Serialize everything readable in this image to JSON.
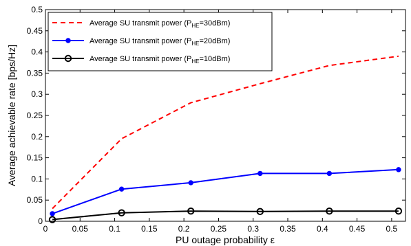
{
  "chart_data": {
    "type": "line",
    "xlabel": "PU outage probability ε",
    "ylabel": "Average achievable rate [bps/Hz]",
    "xlim": [
      0,
      0.52
    ],
    "ylim": [
      0,
      0.5
    ],
    "xticks": [
      "0",
      "0.05",
      "0.1",
      "0.15",
      "0.2",
      "0.25",
      "0.3",
      "0.35",
      "0.4",
      "0.45",
      "0.5"
    ],
    "yticks": [
      "0",
      "0.05",
      "0.1",
      "0.15",
      "0.2",
      "0.25",
      "0.3",
      "0.35",
      "0.4",
      "0.45",
      "0.5"
    ],
    "grid": false,
    "legend_position": "top-left",
    "series": [
      {
        "name": "Average SU transmit power (P",
        "name_sub": "HE",
        "name_suffix": "=30dBm)",
        "color": "#ff0000",
        "style": "dashed",
        "marker": "none",
        "x": [
          0.01,
          0.11,
          0.21,
          0.31,
          0.41,
          0.51
        ],
        "y": [
          0.03,
          0.195,
          0.28,
          0.325,
          0.368,
          0.39
        ]
      },
      {
        "name": "Average SU transmit power (P",
        "name_sub": "HE",
        "name_suffix": "=20dBm)",
        "color": "#0000ff",
        "style": "solid",
        "marker": "dot",
        "x": [
          0.01,
          0.11,
          0.21,
          0.31,
          0.41,
          0.51
        ],
        "y": [
          0.018,
          0.076,
          0.091,
          0.113,
          0.113,
          0.122
        ]
      },
      {
        "name": "Average SU transmit power (P",
        "name_sub": "HE",
        "name_suffix": "=10dBm)",
        "color": "#000000",
        "style": "solid",
        "marker": "circle",
        "x": [
          0.01,
          0.11,
          0.21,
          0.31,
          0.41,
          0.51
        ],
        "y": [
          0.004,
          0.02,
          0.024,
          0.023,
          0.024,
          0.024
        ]
      }
    ]
  }
}
